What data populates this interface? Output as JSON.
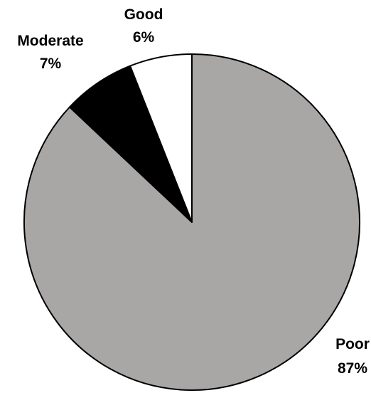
{
  "chart_data": {
    "type": "pie",
    "start_angle_deg": 0,
    "direction": "clockwise",
    "slices": [
      {
        "label": "Poor",
        "value": 87,
        "value_text": "87%",
        "color": "#a9a6a6"
      },
      {
        "label": "Moderate",
        "value": 7,
        "value_text": "7%",
        "color": "#000000"
      },
      {
        "label": "Good",
        "value": 6,
        "value_text": "6%",
        "color": "#ffffff"
      }
    ],
    "stroke_color": "#000000",
    "title": "",
    "legend": "none"
  }
}
